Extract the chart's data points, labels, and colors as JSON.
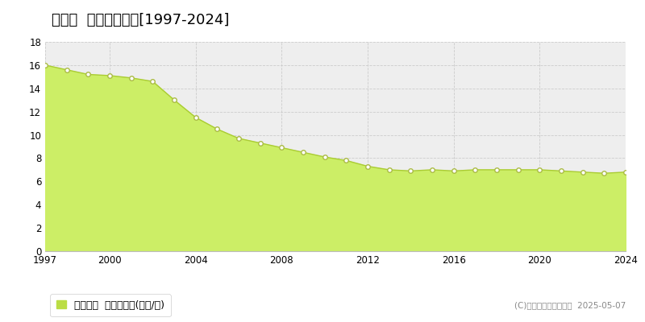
{
  "title": "立山町  基準地価推移[1997-2024]",
  "years": [
    1997,
    1998,
    1999,
    2000,
    2001,
    2002,
    2003,
    2004,
    2005,
    2006,
    2007,
    2008,
    2009,
    2010,
    2011,
    2012,
    2013,
    2014,
    2015,
    2016,
    2017,
    2018,
    2019,
    2020,
    2021,
    2022,
    2023,
    2024
  ],
  "values": [
    16.0,
    15.6,
    15.2,
    15.1,
    14.9,
    14.6,
    13.0,
    11.5,
    10.5,
    9.7,
    9.3,
    8.9,
    8.5,
    8.1,
    7.8,
    7.3,
    7.0,
    6.9,
    7.0,
    6.9,
    7.0,
    7.0,
    7.0,
    7.0,
    6.9,
    6.8,
    6.7,
    6.8
  ],
  "ylim": [
    0,
    18
  ],
  "yticks": [
    0,
    2,
    4,
    6,
    8,
    10,
    12,
    14,
    16,
    18
  ],
  "xticks": [
    1997,
    2000,
    2004,
    2008,
    2012,
    2016,
    2020,
    2024
  ],
  "fill_color": "#ccee66",
  "line_color": "#aacc33",
  "marker_facecolor": "#ffffff",
  "marker_edgecolor": "#aabb44",
  "bg_color": "#ffffff",
  "plot_bg_color": "#eeeeee",
  "grid_color": "#cccccc",
  "legend_label": "基準地価  平均嵪単価(万円/嵪)",
  "legend_sq_color": "#bbdd44",
  "copyright": "(C)土地価格ドットコム  2025-05-07",
  "title_fontsize": 13,
  "tick_fontsize": 8.5,
  "legend_fontsize": 9,
  "copyright_fontsize": 7.5
}
